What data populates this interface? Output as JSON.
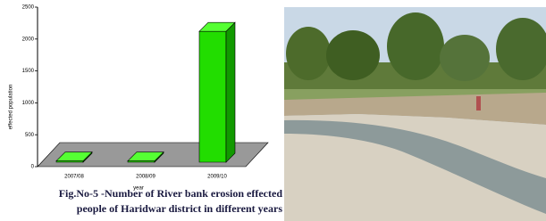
{
  "chart_data": {
    "type": "bar3d",
    "y_label": "effected population",
    "x_label": "year",
    "categories": [
      "2007/08",
      "2008/09",
      "2009/10"
    ],
    "values": [
      20,
      20,
      2050
    ],
    "color": "#22dd00",
    "ylim": [
      0,
      2500
    ],
    "yticks": [
      0,
      500,
      1000,
      1500,
      2000,
      2500
    ]
  },
  "caption": [
    "Fig.No-5 -Number of River bank erosion effected",
    "people of Haridwar district in different years"
  ]
}
